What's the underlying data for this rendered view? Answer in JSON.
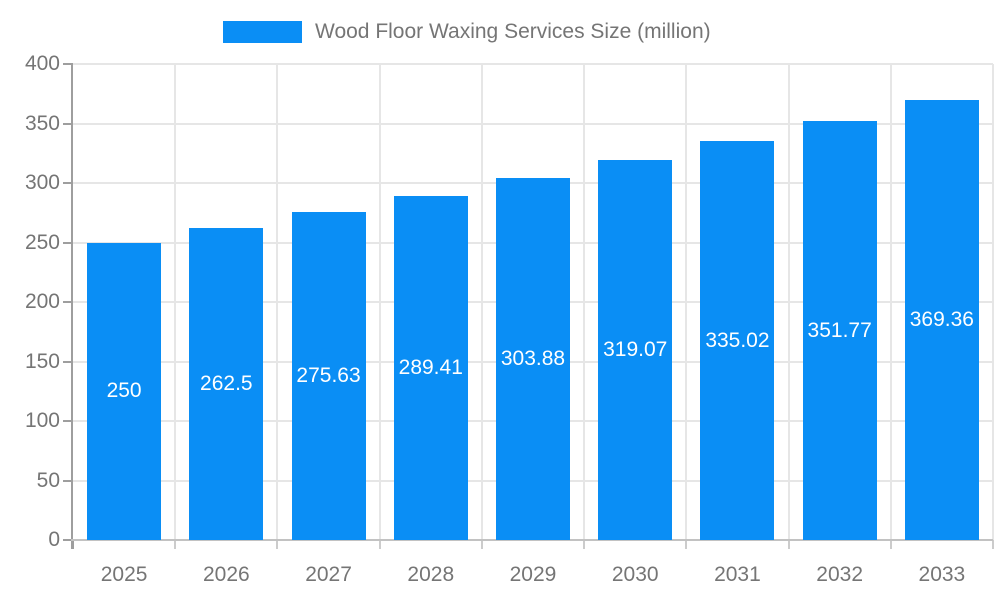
{
  "legend": {
    "label": "Wood Floor Waxing Services Size (million)"
  },
  "chart_data": {
    "type": "bar",
    "title": "Wood Floor Waxing Services Size (million)",
    "categories": [
      "2025",
      "2026",
      "2027",
      "2028",
      "2029",
      "2030",
      "2031",
      "2032",
      "2033"
    ],
    "values": [
      250,
      262.5,
      275.63,
      289.41,
      303.88,
      319.07,
      335.02,
      351.77,
      369.36
    ],
    "value_labels": [
      "250",
      "262.5",
      "275.63",
      "289.41",
      "303.88",
      "319.07",
      "335.02",
      "351.77",
      "369.36"
    ],
    "xlabel": "",
    "ylabel": "",
    "ylim": [
      0,
      400
    ],
    "yticks": [
      0,
      50,
      100,
      150,
      200,
      250,
      300,
      350,
      400
    ],
    "grid": true,
    "legend_position": "top",
    "value_label_position": "inside-middle"
  },
  "colors": {
    "bar": "#0A8EF5",
    "bar_label_text": "#FFFFFF",
    "axis_text": "#757575",
    "legend_text": "#757575",
    "grid_line": "#E6E6E6",
    "y_axis_line": "#9E9E9E",
    "x_axis_line": "#C2C2C2",
    "y_tick_mark": "#9E9E9E",
    "x_tick_mark": "#CCCCCC",
    "background": "#FFFFFF"
  }
}
